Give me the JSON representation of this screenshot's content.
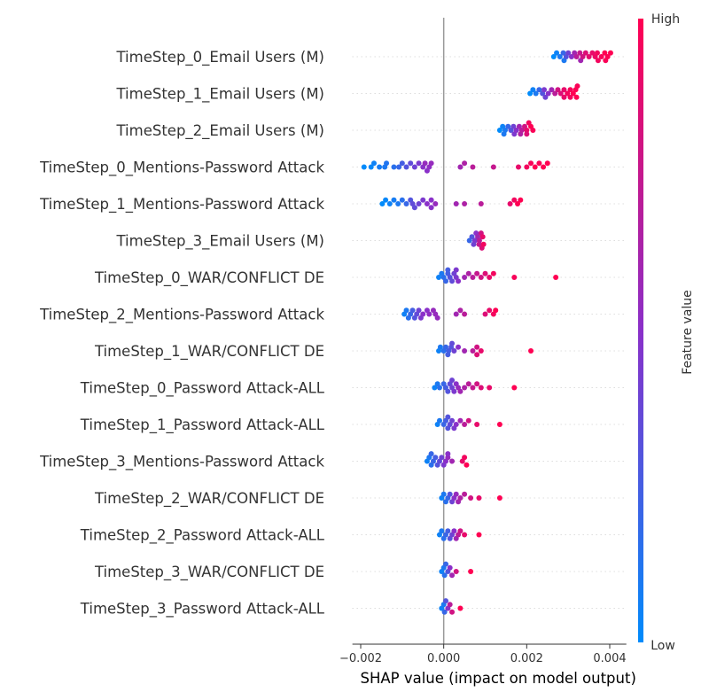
{
  "chart_data": {
    "type": "scatter",
    "subtype": "shap-beeswarm",
    "xlabel": "SHAP value (impact on model output)",
    "xlim": [
      -0.0022,
      0.0044
    ],
    "xticks": [
      -0.002,
      0.0,
      0.002,
      0.004
    ],
    "xtick_labels": [
      "−0.002",
      "0.000",
      "0.002",
      "0.004"
    ],
    "colorbar": {
      "label": "Feature value",
      "high_label": "High",
      "low_label": "Low",
      "low_color": "#008bfb",
      "high_color": "#ff0052",
      "mid_color": "#8a30c9"
    },
    "features": [
      {
        "name": "TimeStep_0_Email Users (M)",
        "points": [
          [
            0.00265,
            0.0
          ],
          [
            0.00272,
            0.05
          ],
          [
            0.0028,
            0.1
          ],
          [
            0.00288,
            0.2
          ],
          [
            0.00295,
            0.3
          ],
          [
            0.003,
            0.4
          ],
          [
            0.00308,
            0.5
          ],
          [
            0.00315,
            0.6
          ],
          [
            0.0032,
            0.7
          ],
          [
            0.00328,
            0.75
          ],
          [
            0.00335,
            0.8
          ],
          [
            0.00342,
            0.85
          ],
          [
            0.0035,
            0.88
          ],
          [
            0.00358,
            0.9
          ],
          [
            0.00365,
            0.92
          ],
          [
            0.00372,
            0.95
          ],
          [
            0.0038,
            0.97
          ],
          [
            0.00388,
            1.0
          ],
          [
            0.00395,
            0.99
          ],
          [
            0.00402,
            1.0
          ],
          [
            0.0029,
            0.1
          ],
          [
            0.0033,
            0.6
          ],
          [
            0.0037,
            0.95
          ],
          [
            0.0039,
            0.98
          ]
        ]
      },
      {
        "name": "TimeStep_1_Email Users (M)",
        "points": [
          [
            0.00208,
            0.0
          ],
          [
            0.00215,
            0.05
          ],
          [
            0.00222,
            0.1
          ],
          [
            0.0023,
            0.2
          ],
          [
            0.00238,
            0.3
          ],
          [
            0.00245,
            0.4
          ],
          [
            0.00252,
            0.5
          ],
          [
            0.0026,
            0.6
          ],
          [
            0.00268,
            0.7
          ],
          [
            0.00275,
            0.8
          ],
          [
            0.00282,
            0.85
          ],
          [
            0.0029,
            0.9
          ],
          [
            0.00298,
            0.95
          ],
          [
            0.00305,
            0.97
          ],
          [
            0.00312,
            1.0
          ],
          [
            0.00318,
            1.0
          ],
          [
            0.00322,
            0.98
          ],
          [
            0.00305,
            0.95
          ],
          [
            0.0032,
            1.0
          ],
          [
            0.00242,
            0.45
          ],
          [
            0.0029,
            0.9
          ]
        ]
      },
      {
        "name": "TimeStep_2_Email Users (M)",
        "points": [
          [
            0.00135,
            0.0
          ],
          [
            0.00142,
            0.05
          ],
          [
            0.00148,
            0.1
          ],
          [
            0.00155,
            0.2
          ],
          [
            0.00162,
            0.3
          ],
          [
            0.00168,
            0.4
          ],
          [
            0.00175,
            0.5
          ],
          [
            0.00182,
            0.6
          ],
          [
            0.00188,
            0.7
          ],
          [
            0.00195,
            0.8
          ],
          [
            0.002,
            0.9
          ],
          [
            0.00205,
            0.95
          ],
          [
            0.0021,
            1.0
          ],
          [
            0.00215,
            0.98
          ],
          [
            0.00145,
            0.1
          ],
          [
            0.0017,
            0.45
          ],
          [
            0.00185,
            0.65
          ],
          [
            0.002,
            0.85
          ]
        ]
      },
      {
        "name": "TimeStep_0_Mentions-Password Attack",
        "points": [
          [
            -0.00192,
            0.0
          ],
          [
            -0.00175,
            0.02
          ],
          [
            -0.00168,
            0.05
          ],
          [
            -0.00155,
            0.08
          ],
          [
            -0.00142,
            0.1
          ],
          [
            -0.00138,
            0.12
          ],
          [
            -0.0012,
            0.15
          ],
          [
            -0.00108,
            0.2
          ],
          [
            -0.001,
            0.25
          ],
          [
            -0.0009,
            0.3
          ],
          [
            -0.0008,
            0.35
          ],
          [
            -0.0007,
            0.4
          ],
          [
            -0.0006,
            0.45
          ],
          [
            -0.0005,
            0.5
          ],
          [
            -0.00045,
            0.55
          ],
          [
            -0.0004,
            0.5
          ],
          [
            -0.00035,
            0.52
          ],
          [
            -0.0003,
            0.55
          ],
          [
            0.0004,
            0.6
          ],
          [
            0.0005,
            0.65
          ],
          [
            0.0007,
            0.7
          ],
          [
            0.0012,
            0.75
          ],
          [
            0.0018,
            0.9
          ],
          [
            0.002,
            0.95
          ],
          [
            0.0021,
            0.97
          ],
          [
            0.0022,
            1.0
          ],
          [
            0.0023,
            0.98
          ],
          [
            0.0024,
            1.0
          ],
          [
            0.0025,
            1.0
          ]
        ]
      },
      {
        "name": "TimeStep_1_Mentions-Password Attack",
        "points": [
          [
            -0.00148,
            0.0
          ],
          [
            -0.0014,
            0.02
          ],
          [
            -0.0013,
            0.05
          ],
          [
            -0.0012,
            0.08
          ],
          [
            -0.0011,
            0.1
          ],
          [
            -0.001,
            0.15
          ],
          [
            -0.0009,
            0.2
          ],
          [
            -0.0008,
            0.3
          ],
          [
            -0.0007,
            0.35
          ],
          [
            -0.0006,
            0.4
          ],
          [
            -0.0005,
            0.45
          ],
          [
            -0.0004,
            0.5
          ],
          [
            -0.0003,
            0.5
          ],
          [
            -0.0002,
            0.55
          ],
          [
            0.0003,
            0.6
          ],
          [
            0.0005,
            0.65
          ],
          [
            0.0009,
            0.7
          ],
          [
            0.0016,
            0.9
          ],
          [
            0.0017,
            0.95
          ],
          [
            0.00178,
            1.0
          ],
          [
            0.00185,
            1.0
          ],
          [
            -0.00075,
            0.35
          ],
          [
            -0.0003,
            0.5
          ]
        ]
      },
      {
        "name": "TimeStep_3_Email Users (M)",
        "points": [
          [
            0.00062,
            0.2
          ],
          [
            0.00068,
            0.3
          ],
          [
            0.00072,
            0.4
          ],
          [
            0.00078,
            0.5
          ],
          [
            0.00082,
            0.6
          ],
          [
            0.00086,
            0.7
          ],
          [
            0.0009,
            0.8
          ],
          [
            0.00092,
            0.85
          ],
          [
            0.00094,
            0.9
          ],
          [
            0.00096,
            0.95
          ],
          [
            0.00075,
            0.45
          ],
          [
            0.00085,
            0.75
          ]
        ]
      },
      {
        "name": "TimeStep_0_WAR/CONFLICT DE",
        "points": [
          [
            -0.00012,
            0.05
          ],
          [
            -5e-05,
            0.1
          ],
          [
            0.0,
            0.15
          ],
          [
            5e-05,
            0.2
          ],
          [
            0.0001,
            0.25
          ],
          [
            0.00015,
            0.3
          ],
          [
            0.0002,
            0.35
          ],
          [
            0.00025,
            0.4
          ],
          [
            0.0003,
            0.45
          ],
          [
            0.00035,
            0.5
          ],
          [
            0.0005,
            0.6
          ],
          [
            0.0006,
            0.65
          ],
          [
            0.0007,
            0.7
          ],
          [
            0.0008,
            0.75
          ],
          [
            0.0009,
            0.8
          ],
          [
            0.001,
            0.85
          ],
          [
            0.0011,
            0.9
          ],
          [
            0.0012,
            0.95
          ],
          [
            0.0017,
            0.97
          ],
          [
            0.0027,
            1.0
          ],
          [
            0.0003,
            0.45
          ],
          [
            0.0001,
            0.25
          ]
        ]
      },
      {
        "name": "TimeStep_2_Mentions-Password Attack",
        "points": [
          [
            -0.00095,
            0.05
          ],
          [
            -0.0009,
            0.1
          ],
          [
            -0.00085,
            0.15
          ],
          [
            -0.0008,
            0.2
          ],
          [
            -0.00075,
            0.25
          ],
          [
            -0.0007,
            0.3
          ],
          [
            -0.00065,
            0.35
          ],
          [
            -0.0006,
            0.4
          ],
          [
            -0.00055,
            0.45
          ],
          [
            -0.0005,
            0.5
          ],
          [
            -0.0004,
            0.5
          ],
          [
            -0.00035,
            0.52
          ],
          [
            -0.0002,
            0.55
          ],
          [
            -0.00015,
            0.55
          ],
          [
            0.0003,
            0.6
          ],
          [
            0.0004,
            0.65
          ],
          [
            0.0005,
            0.7
          ],
          [
            0.001,
            0.85
          ],
          [
            0.0011,
            0.9
          ],
          [
            0.0012,
            0.95
          ],
          [
            0.00125,
            1.0
          ],
          [
            -0.00025,
            0.55
          ]
        ]
      },
      {
        "name": "TimeStep_1_WAR/CONFLICT DE",
        "points": [
          [
            -0.00012,
            0.05
          ],
          [
            -8e-05,
            0.1
          ],
          [
            0.0,
            0.15
          ],
          [
            5e-05,
            0.2
          ],
          [
            0.00012,
            0.25
          ],
          [
            0.00018,
            0.3
          ],
          [
            0.00025,
            0.4
          ],
          [
            0.00035,
            0.5
          ],
          [
            0.0005,
            0.6
          ],
          [
            0.0007,
            0.7
          ],
          [
            0.0008,
            0.8
          ],
          [
            0.0009,
            0.9
          ],
          [
            0.0008,
            0.85
          ],
          [
            0.0021,
            1.0
          ],
          [
            0.0001,
            0.25
          ],
          [
            0.0002,
            0.35
          ]
        ]
      },
      {
        "name": "TimeStep_0_Password Attack-ALL",
        "points": [
          [
            -0.00022,
            0.05
          ],
          [
            -0.00015,
            0.1
          ],
          [
            -0.0001,
            0.15
          ],
          [
            0.0,
            0.2
          ],
          [
            5e-05,
            0.25
          ],
          [
            0.0001,
            0.3
          ],
          [
            0.00015,
            0.35
          ],
          [
            0.0002,
            0.4
          ],
          [
            0.00025,
            0.45
          ],
          [
            0.0003,
            0.5
          ],
          [
            0.00035,
            0.55
          ],
          [
            0.0004,
            0.6
          ],
          [
            0.0005,
            0.65
          ],
          [
            0.0006,
            0.7
          ],
          [
            0.0007,
            0.75
          ],
          [
            0.0008,
            0.8
          ],
          [
            0.0009,
            0.85
          ],
          [
            0.0011,
            0.9
          ],
          [
            0.0017,
            1.0
          ],
          [
            0.0002,
            0.4
          ]
        ]
      },
      {
        "name": "TimeStep_1_Password Attack-ALL",
        "points": [
          [
            -0.00015,
            0.05
          ],
          [
            -0.0001,
            0.1
          ],
          [
            0.0,
            0.2
          ],
          [
            5e-05,
            0.25
          ],
          [
            0.0001,
            0.3
          ],
          [
            0.00015,
            0.35
          ],
          [
            0.0002,
            0.4
          ],
          [
            0.00025,
            0.45
          ],
          [
            0.0003,
            0.5
          ],
          [
            0.0004,
            0.6
          ],
          [
            0.0005,
            0.7
          ],
          [
            0.0006,
            0.8
          ],
          [
            0.0008,
            0.9
          ],
          [
            0.00135,
            1.0
          ],
          [
            0.0001,
            0.3
          ]
        ]
      },
      {
        "name": "TimeStep_3_Mentions-Password Attack",
        "points": [
          [
            -0.0004,
            0.05
          ],
          [
            -0.00035,
            0.1
          ],
          [
            -0.0003,
            0.15
          ],
          [
            -0.00025,
            0.2
          ],
          [
            -0.0002,
            0.25
          ],
          [
            -0.00015,
            0.3
          ],
          [
            -0.0001,
            0.35
          ],
          [
            -5e-05,
            0.4
          ],
          [
            0.0,
            0.45
          ],
          [
            5e-05,
            0.5
          ],
          [
            0.0001,
            0.55
          ],
          [
            0.0002,
            0.6
          ],
          [
            0.00045,
            0.9
          ],
          [
            0.0005,
            0.95
          ],
          [
            0.00055,
            1.0
          ],
          [
            -0.0003,
            0.2
          ],
          [
            0.0001,
            0.5
          ]
        ]
      },
      {
        "name": "TimeStep_2_WAR/CONFLICT DE",
        "points": [
          [
            -5e-05,
            0.05
          ],
          [
            0.0,
            0.1
          ],
          [
            5e-05,
            0.15
          ],
          [
            0.0001,
            0.2
          ],
          [
            0.00015,
            0.3
          ],
          [
            0.0002,
            0.4
          ],
          [
            0.00025,
            0.5
          ],
          [
            0.0003,
            0.55
          ],
          [
            0.00035,
            0.6
          ],
          [
            0.0004,
            0.65
          ],
          [
            0.0005,
            0.7
          ],
          [
            0.00065,
            0.8
          ],
          [
            0.00085,
            0.9
          ],
          [
            0.00135,
            1.0
          ]
        ]
      },
      {
        "name": "TimeStep_2_Password Attack-ALL",
        "points": [
          [
            -0.0001,
            0.05
          ],
          [
            -5e-05,
            0.1
          ],
          [
            0.0,
            0.15
          ],
          [
            5e-05,
            0.2
          ],
          [
            0.0001,
            0.25
          ],
          [
            0.00015,
            0.3
          ],
          [
            0.0002,
            0.4
          ],
          [
            0.00025,
            0.5
          ],
          [
            0.0003,
            0.6
          ],
          [
            0.00035,
            0.7
          ],
          [
            0.0004,
            0.8
          ],
          [
            0.0005,
            0.9
          ],
          [
            0.00085,
            1.0
          ]
        ]
      },
      {
        "name": "TimeStep_3_WAR/CONFLICT DE",
        "points": [
          [
            -5e-05,
            0.05
          ],
          [
            0.0,
            0.1
          ],
          [
            2e-05,
            0.15
          ],
          [
            5e-05,
            0.2
          ],
          [
            0.0001,
            0.3
          ],
          [
            0.00015,
            0.5
          ],
          [
            0.0002,
            0.6
          ],
          [
            0.0003,
            0.8
          ],
          [
            0.00065,
            1.0
          ]
        ]
      },
      {
        "name": "TimeStep_3_Password Attack-ALL",
        "points": [
          [
            -5e-05,
            0.05
          ],
          [
            0.0,
            0.1
          ],
          [
            2e-05,
            0.2
          ],
          [
            5e-05,
            0.3
          ],
          [
            0.0001,
            0.5
          ],
          [
            0.00015,
            0.7
          ],
          [
            0.0002,
            0.8
          ],
          [
            0.0004,
            1.0
          ]
        ]
      }
    ]
  }
}
